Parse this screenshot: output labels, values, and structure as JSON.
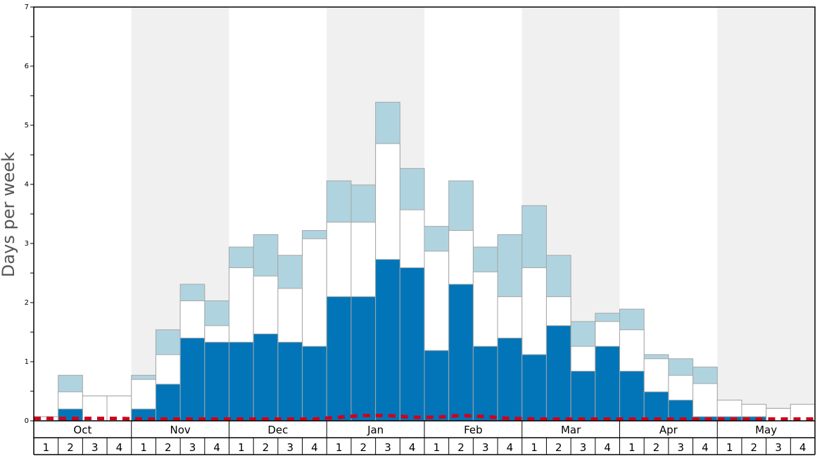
{
  "chart_data": {
    "type": "bar",
    "ylabel": "Days per week",
    "ylim": [
      0,
      7
    ],
    "y_ticks": [
      0,
      1,
      2,
      3,
      4,
      5,
      6,
      7
    ],
    "months": [
      "Oct",
      "Nov",
      "Dec",
      "Jan",
      "Feb",
      "Mar",
      "Apr",
      "May"
    ],
    "weeks": [
      "1",
      "2",
      "3",
      "4"
    ],
    "categories": [
      "Oct 1",
      "Oct 2",
      "Oct 3",
      "Oct 4",
      "Nov 1",
      "Nov 2",
      "Nov 3",
      "Nov 4",
      "Dec 1",
      "Dec 2",
      "Dec 3",
      "Dec 4",
      "Jan 1",
      "Jan 2",
      "Jan 3",
      "Jan 4",
      "Feb 1",
      "Feb 2",
      "Feb 3",
      "Feb 4",
      "Mar 1",
      "Mar 2",
      "Mar 3",
      "Mar 4",
      "Apr 1",
      "Apr 2",
      "Apr 3",
      "Apr 4",
      "May 1",
      "May 2",
      "May 3",
      "May 4"
    ],
    "series": [
      {
        "color": "#0175b8",
        "values": [
          0,
          0.2,
          0,
          0,
          0.2,
          0.62,
          1.4,
          1.33,
          1.33,
          1.47,
          1.33,
          1.26,
          2.1,
          2.1,
          2.73,
          2.59,
          1.19,
          2.31,
          1.26,
          1.4,
          1.12,
          1.61,
          0.84,
          1.26,
          0.84,
          0.49,
          0.35,
          0.07,
          0.07,
          0.07,
          0,
          0
        ]
      },
      {
        "color": "#ffffff",
        "values": [
          0.07,
          0.49,
          0.42,
          0.42,
          0.7,
          1.12,
          2.03,
          1.61,
          2.59,
          2.45,
          2.24,
          3.08,
          3.36,
          3.36,
          4.69,
          3.57,
          2.87,
          3.22,
          2.52,
          2.1,
          2.59,
          2.1,
          1.26,
          1.68,
          1.54,
          1.05,
          0.77,
          0.63,
          0.35,
          0.28,
          0.21,
          0.28
        ]
      },
      {
        "color": "#afd4e0",
        "values": [
          0.07,
          0.77,
          0.42,
          0.42,
          0.77,
          1.54,
          2.31,
          2.03,
          2.94,
          3.15,
          2.8,
          3.22,
          4.06,
          3.99,
          5.39,
          4.27,
          3.29,
          4.06,
          2.94,
          3.15,
          3.64,
          2.8,
          1.68,
          1.82,
          1.89,
          1.12,
          1.05,
          0.91,
          0.35,
          0.28,
          0.21,
          0.28
        ]
      }
    ],
    "line": {
      "style": "dashed",
      "color": "#d0021b",
      "values": [
        0.04,
        0.04,
        0.04,
        0.04,
        0.03,
        0.03,
        0.03,
        0.03,
        0.03,
        0.03,
        0.03,
        0.03,
        0.06,
        0.09,
        0.09,
        0.06,
        0.06,
        0.09,
        0.07,
        0.04,
        0.03,
        0.03,
        0.03,
        0.03,
        0.03,
        0.03,
        0.03,
        0.03,
        0.03,
        0.03,
        0.03,
        0.03
      ]
    },
    "band_colors": [
      "#ffffff",
      "#f0f0f0"
    ],
    "grid": false,
    "legend": "none"
  }
}
